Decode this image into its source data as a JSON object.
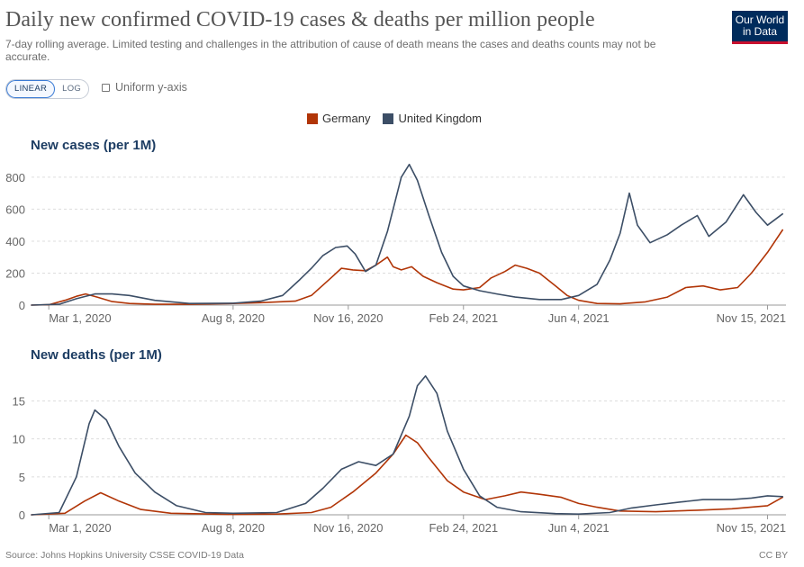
{
  "header": {
    "title": "Daily new confirmed COVID-19 cases & deaths per million people",
    "subtitle": "7-day rolling average. Limited testing and challenges in the attribution of cause of death means the cases and deaths counts may not be accurate.",
    "logo_line1": "Our World",
    "logo_line2": "in Data"
  },
  "controls": {
    "linear_label": "LINEAR",
    "log_label": "LOG",
    "selected_scale": "linear",
    "uniform_label": "Uniform y-axis",
    "uniform_checked": false
  },
  "footer": {
    "source": "Source: Johns Hopkins University CSSE COVID-19 Data",
    "license": "CC BY"
  },
  "colors": {
    "germany": "#b13507",
    "uk": "#3c4e66"
  },
  "chart_data": [
    {
      "type": "line",
      "title": "New cases (per 1M)",
      "legend_position": "top-center",
      "grid": true,
      "x_domain": [
        "2020-02-15",
        "2021-12-01"
      ],
      "ylim": [
        0,
        850
      ],
      "y_ticks": [
        0,
        200,
        400,
        600,
        800
      ],
      "x_tick_labels": [
        {
          "date": "2020-03-01",
          "label": "Mar 1, 2020"
        },
        {
          "date": "2020-08-08",
          "label": "Aug 8, 2020"
        },
        {
          "date": "2020-11-16",
          "label": "Nov 16, 2020"
        },
        {
          "date": "2021-02-24",
          "label": "Feb 24, 2021"
        },
        {
          "date": "2021-06-04",
          "label": "Jun 4, 2021"
        },
        {
          "date": "2021-11-15",
          "label": "Nov 15, 2021"
        }
      ],
      "series": [
        {
          "name": "Germany",
          "color_key": "germany",
          "points": [
            [
              "2020-02-15",
              0
            ],
            [
              "2020-03-01",
              2
            ],
            [
              "2020-03-15",
              30
            ],
            [
              "2020-03-25",
              55
            ],
            [
              "2020-04-02",
              70
            ],
            [
              "2020-04-12",
              50
            ],
            [
              "2020-04-25",
              22
            ],
            [
              "2020-05-10",
              10
            ],
            [
              "2020-06-01",
              5
            ],
            [
              "2020-07-01",
              5
            ],
            [
              "2020-08-08",
              10
            ],
            [
              "2020-09-01",
              15
            ],
            [
              "2020-10-01",
              25
            ],
            [
              "2020-10-15",
              60
            ],
            [
              "2020-11-01",
              170
            ],
            [
              "2020-11-10",
              230
            ],
            [
              "2020-11-20",
              220
            ],
            [
              "2020-12-01",
              215
            ],
            [
              "2020-12-10",
              250
            ],
            [
              "2020-12-20",
              300
            ],
            [
              "2020-12-25",
              240
            ],
            [
              "2021-01-01",
              220
            ],
            [
              "2021-01-10",
              240
            ],
            [
              "2021-01-20",
              180
            ],
            [
              "2021-02-01",
              140
            ],
            [
              "2021-02-15",
              100
            ],
            [
              "2021-02-24",
              95
            ],
            [
              "2021-03-10",
              110
            ],
            [
              "2021-03-20",
              170
            ],
            [
              "2021-04-01",
              210
            ],
            [
              "2021-04-10",
              250
            ],
            [
              "2021-04-20",
              230
            ],
            [
              "2021-05-01",
              200
            ],
            [
              "2021-05-15",
              120
            ],
            [
              "2021-05-25",
              60
            ],
            [
              "2021-06-04",
              30
            ],
            [
              "2021-06-20",
              10
            ],
            [
              "2021-07-10",
              8
            ],
            [
              "2021-08-01",
              20
            ],
            [
              "2021-08-20",
              50
            ],
            [
              "2021-09-05",
              110
            ],
            [
              "2021-09-20",
              120
            ],
            [
              "2021-10-05",
              95
            ],
            [
              "2021-10-20",
              110
            ],
            [
              "2021-11-01",
              200
            ],
            [
              "2021-11-15",
              330
            ],
            [
              "2021-11-28",
              470
            ]
          ]
        },
        {
          "name": "United Kingdom",
          "color_key": "uk",
          "points": [
            [
              "2020-02-15",
              0
            ],
            [
              "2020-03-10",
              5
            ],
            [
              "2020-03-25",
              40
            ],
            [
              "2020-04-10",
              70
            ],
            [
              "2020-04-25",
              70
            ],
            [
              "2020-05-10",
              60
            ],
            [
              "2020-06-01",
              30
            ],
            [
              "2020-07-01",
              10
            ],
            [
              "2020-08-08",
              12
            ],
            [
              "2020-09-01",
              25
            ],
            [
              "2020-09-20",
              60
            ],
            [
              "2020-10-05",
              160
            ],
            [
              "2020-10-15",
              230
            ],
            [
              "2020-10-25",
              310
            ],
            [
              "2020-11-05",
              360
            ],
            [
              "2020-11-15",
              370
            ],
            [
              "2020-11-22",
              320
            ],
            [
              "2020-12-01",
              210
            ],
            [
              "2020-12-10",
              250
            ],
            [
              "2020-12-20",
              460
            ],
            [
              "2021-01-01",
              800
            ],
            [
              "2021-01-08",
              880
            ],
            [
              "2021-01-15",
              780
            ],
            [
              "2021-01-25",
              560
            ],
            [
              "2021-02-05",
              330
            ],
            [
              "2021-02-15",
              180
            ],
            [
              "2021-02-24",
              120
            ],
            [
              "2021-03-10",
              90
            ],
            [
              "2021-03-25",
              70
            ],
            [
              "2021-04-10",
              50
            ],
            [
              "2021-05-01",
              35
            ],
            [
              "2021-05-20",
              35
            ],
            [
              "2021-06-04",
              60
            ],
            [
              "2021-06-20",
              130
            ],
            [
              "2021-07-01",
              280
            ],
            [
              "2021-07-10",
              450
            ],
            [
              "2021-07-18",
              700
            ],
            [
              "2021-07-25",
              500
            ],
            [
              "2021-08-05",
              390
            ],
            [
              "2021-08-20",
              440
            ],
            [
              "2021-09-01",
              500
            ],
            [
              "2021-09-15",
              560
            ],
            [
              "2021-09-25",
              430
            ],
            [
              "2021-10-10",
              520
            ],
            [
              "2021-10-25",
              690
            ],
            [
              "2021-11-05",
              580
            ],
            [
              "2021-11-15",
              500
            ],
            [
              "2021-11-28",
              570
            ]
          ]
        }
      ]
    },
    {
      "type": "line",
      "title": "New deaths (per 1M)",
      "legend_position": "top-center",
      "grid": true,
      "x_domain": [
        "2020-02-15",
        "2021-12-01"
      ],
      "ylim": [
        0,
        18.5
      ],
      "y_ticks": [
        0,
        5,
        10,
        15
      ],
      "x_tick_labels": [
        {
          "date": "2020-03-01",
          "label": "Mar 1, 2020"
        },
        {
          "date": "2020-08-08",
          "label": "Aug 8, 2020"
        },
        {
          "date": "2020-11-16",
          "label": "Nov 16, 2020"
        },
        {
          "date": "2021-02-24",
          "label": "Feb 24, 2021"
        },
        {
          "date": "2021-06-04",
          "label": "Jun 4, 2021"
        },
        {
          "date": "2021-11-15",
          "label": "Nov 15, 2021"
        }
      ],
      "series": [
        {
          "name": "Germany",
          "color_key": "germany",
          "points": [
            [
              "2020-02-15",
              0
            ],
            [
              "2020-03-15",
              0.2
            ],
            [
              "2020-04-01",
              1.8
            ],
            [
              "2020-04-15",
              2.9
            ],
            [
              "2020-05-01",
              1.8
            ],
            [
              "2020-05-20",
              0.7
            ],
            [
              "2020-06-15",
              0.2
            ],
            [
              "2020-08-08",
              0.05
            ],
            [
              "2020-09-15",
              0.1
            ],
            [
              "2020-10-15",
              0.3
            ],
            [
              "2020-11-01",
              1.0
            ],
            [
              "2020-11-20",
              3.0
            ],
            [
              "2020-12-10",
              5.5
            ],
            [
              "2020-12-25",
              8.0
            ],
            [
              "2021-01-05",
              10.5
            ],
            [
              "2021-01-15",
              9.5
            ],
            [
              "2021-01-25",
              7.5
            ],
            [
              "2021-02-10",
              4.5
            ],
            [
              "2021-02-24",
              3.0
            ],
            [
              "2021-03-15",
              2.0
            ],
            [
              "2021-04-01",
              2.5
            ],
            [
              "2021-04-15",
              3.0
            ],
            [
              "2021-05-01",
              2.7
            ],
            [
              "2021-05-20",
              2.3
            ],
            [
              "2021-06-04",
              1.5
            ],
            [
              "2021-06-20",
              1.0
            ],
            [
              "2021-07-10",
              0.5
            ],
            [
              "2021-08-10",
              0.4
            ],
            [
              "2021-09-15",
              0.6
            ],
            [
              "2021-10-15",
              0.8
            ],
            [
              "2021-11-15",
              1.2
            ],
            [
              "2021-11-28",
              2.3
            ]
          ]
        },
        {
          "name": "United Kingdom",
          "color_key": "uk",
          "points": [
            [
              "2020-02-15",
              0
            ],
            [
              "2020-03-10",
              0.3
            ],
            [
              "2020-03-25",
              5.0
            ],
            [
              "2020-04-05",
              12.0
            ],
            [
              "2020-04-10",
              13.8
            ],
            [
              "2020-04-20",
              12.5
            ],
            [
              "2020-05-01",
              9.0
            ],
            [
              "2020-05-15",
              5.5
            ],
            [
              "2020-06-01",
              3.0
            ],
            [
              "2020-06-20",
              1.2
            ],
            [
              "2020-07-15",
              0.3
            ],
            [
              "2020-08-08",
              0.2
            ],
            [
              "2020-09-15",
              0.3
            ],
            [
              "2020-10-10",
              1.5
            ],
            [
              "2020-10-25",
              3.5
            ],
            [
              "2020-11-10",
              6.0
            ],
            [
              "2020-11-25",
              7.0
            ],
            [
              "2020-12-10",
              6.5
            ],
            [
              "2020-12-25",
              8.0
            ],
            [
              "2021-01-08",
              13.0
            ],
            [
              "2021-01-15",
              17.0
            ],
            [
              "2021-01-22",
              18.3
            ],
            [
              "2021-02-01",
              16.0
            ],
            [
              "2021-02-10",
              11.0
            ],
            [
              "2021-02-24",
              6.0
            ],
            [
              "2021-03-10",
              2.5
            ],
            [
              "2021-03-25",
              1.0
            ],
            [
              "2021-04-15",
              0.4
            ],
            [
              "2021-05-15",
              0.15
            ],
            [
              "2021-06-04",
              0.1
            ],
            [
              "2021-07-01",
              0.3
            ],
            [
              "2021-07-20",
              0.9
            ],
            [
              "2021-08-10",
              1.3
            ],
            [
              "2021-09-01",
              1.7
            ],
            [
              "2021-09-20",
              2.0
            ],
            [
              "2021-10-15",
              2.0
            ],
            [
              "2021-11-01",
              2.2
            ],
            [
              "2021-11-15",
              2.5
            ],
            [
              "2021-11-28",
              2.4
            ]
          ]
        }
      ]
    }
  ]
}
